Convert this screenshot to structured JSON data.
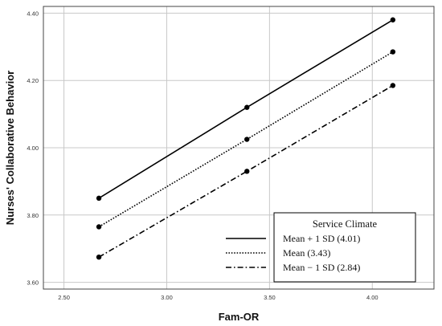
{
  "chart_data": {
    "type": "line",
    "title": "",
    "xlabel": "Fam-OR",
    "ylabel": "Nurses' Collaborative Behavior",
    "xlim": [
      2.4,
      4.3
    ],
    "ylim": [
      3.58,
      4.42
    ],
    "x_ticks": [
      2.5,
      3.0,
      3.5,
      4.0
    ],
    "x_tick_labels": [
      "2.50",
      "3.00",
      "3.50",
      "4.00"
    ],
    "y_ticks": [
      3.6,
      3.8,
      4.0,
      4.2,
      4.4
    ],
    "y_tick_labels": [
      "3.60",
      "3.80",
      "4.00",
      "4.20",
      "4.40"
    ],
    "grid": true,
    "legend": {
      "title": "Service Climate",
      "placement": "bottom-right"
    },
    "x": [
      2.67,
      3.39,
      4.1
    ],
    "series": [
      {
        "name": "Mean + 1 SD (4.01)",
        "style": "solid",
        "values": [
          3.85,
          4.12,
          4.38
        ]
      },
      {
        "name": "Mean (3.43)",
        "style": "dotted",
        "values": [
          3.765,
          4.025,
          4.285
        ]
      },
      {
        "name": "Mean − 1 SD (2.84)",
        "style": "dashdot",
        "values": [
          3.675,
          3.93,
          4.185
        ]
      }
    ],
    "colors": {
      "line": "#000000",
      "grid": "#c8c8c8"
    }
  }
}
